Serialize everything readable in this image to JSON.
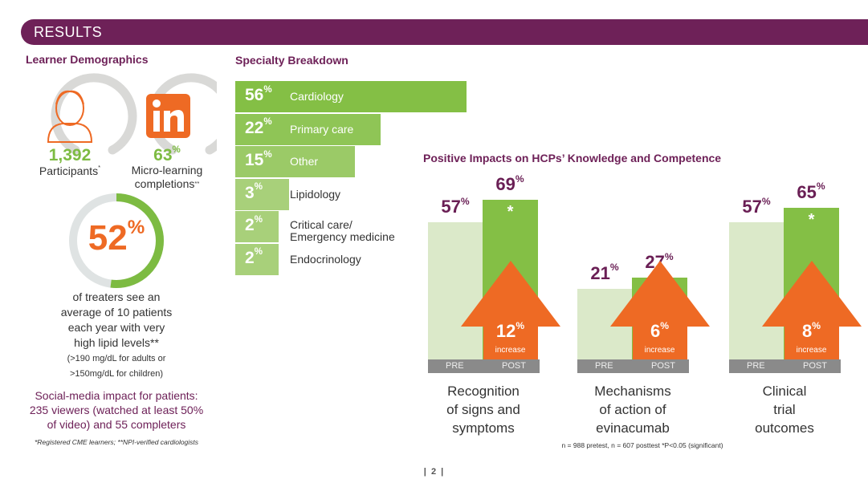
{
  "header": {
    "title": "RESULTS"
  },
  "demographics": {
    "title": "Learner Demographics",
    "participants": {
      "value": "1,392",
      "label": "Participants",
      "mark": "*",
      "icon": "person-icon"
    },
    "microlearning": {
      "value": "63",
      "unit": "%",
      "label1": "Micro-learning",
      "label2": "completions",
      "mark": "**",
      "icon": "linkedin-icon"
    },
    "treaters": {
      "value": "52",
      "unit": "%",
      "fraction": 0.52,
      "lines": [
        "of treaters see an",
        "average of 10 patients",
        "each year with very",
        "high lipid levels**"
      ],
      "note_lines": [
        "(>190 mg/dL for adults or",
        ">150mg/dL for children)"
      ]
    },
    "social_lines": [
      "Social-media impact for patients:",
      "235 viewers (watched at least 50%",
      "of video) and 55 completers"
    ],
    "footnote": "*Registered CME learners; **NPI-verified cardiologists"
  },
  "colors": {
    "purple": "#6e2158",
    "green": "#7dbb42",
    "orange": "#ee6a24",
    "light_green": "#dbe9c9",
    "gray": "#8a8a8a"
  },
  "chart_data": [
    {
      "type": "bar",
      "orientation": "horizontal",
      "title": "Specialty Breakdown",
      "unit": "%",
      "categories": [
        "Cardiology",
        "Primary care",
        "Other",
        "Lipidology",
        "Critical care/\nEmergency medicine",
        "Endocrinology"
      ],
      "values": [
        56,
        22,
        15,
        3,
        2,
        2
      ]
    },
    {
      "type": "bar",
      "title": "Positive Impacts on HCPs’ Knowledge and Competence",
      "unit": "%",
      "series_labels": [
        "PRE",
        "POST"
      ],
      "increase_label": "increase",
      "significance_mark": "*",
      "groups": [
        {
          "category": "Recognition of signs and symptoms",
          "lines": [
            "Recognition",
            "of signs and",
            "symptoms"
          ],
          "pre": 57,
          "post": 69,
          "increase": 12
        },
        {
          "category": "Mechanisms of action of evinacumab",
          "lines": [
            "Mechanisms",
            "of action of",
            "evinacumab"
          ],
          "pre": 21,
          "post": 27,
          "increase": 6
        },
        {
          "category": "Clinical trial outcomes",
          "lines": [
            "Clinical",
            "trial",
            "outcomes"
          ],
          "pre": 57,
          "post": 65,
          "increase": 8
        }
      ],
      "footnote": "n = 988 pretest, n = 607 posttest *P<0.05 (significant)"
    }
  ],
  "page_number": "|  2  |"
}
